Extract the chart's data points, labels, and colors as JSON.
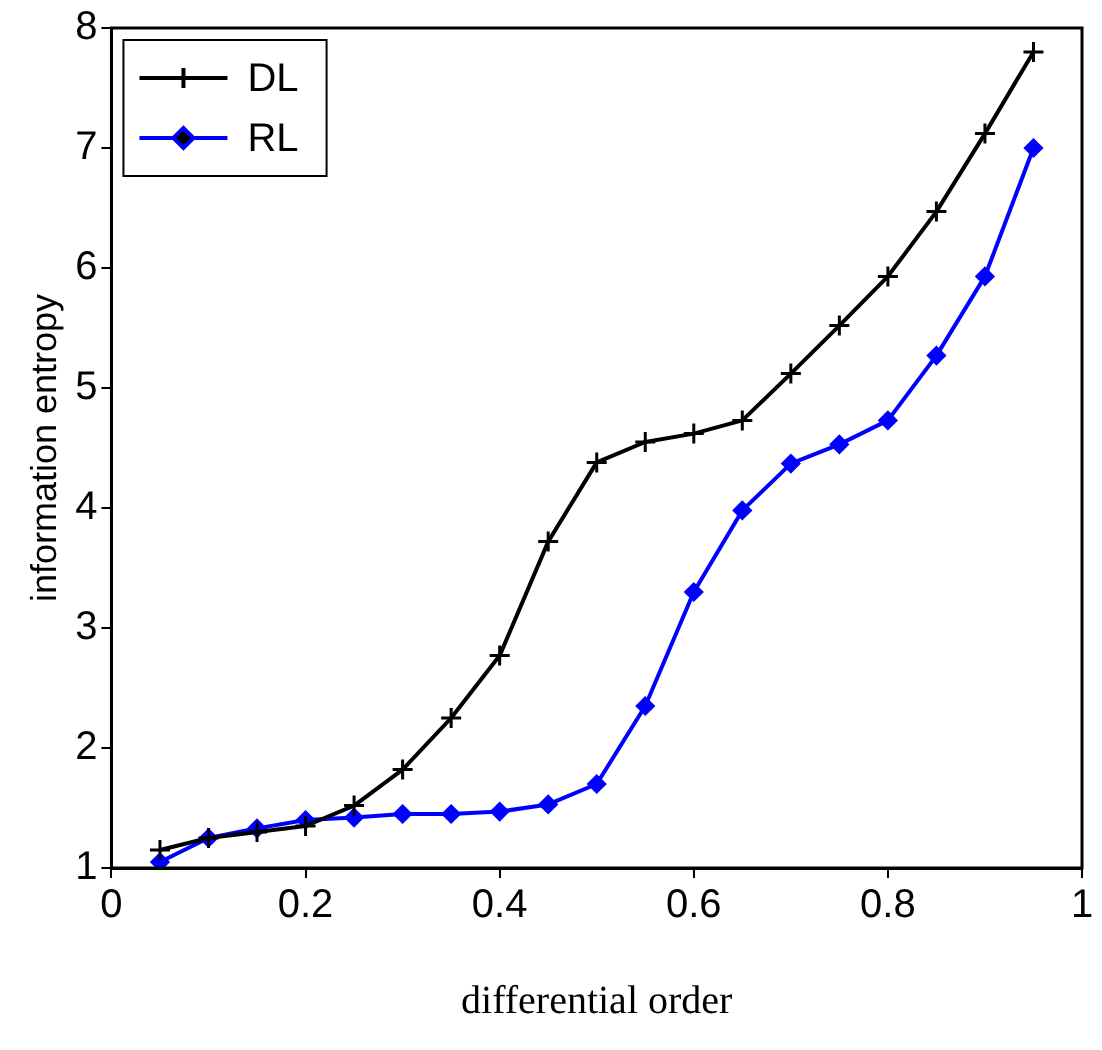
{
  "chart_data": {
    "type": "line",
    "xlabel": "differential order",
    "ylabel": "information entropy",
    "x": [
      0.05,
      0.1,
      0.15,
      0.2,
      0.25,
      0.3,
      0.35,
      0.4,
      0.45,
      0.5,
      0.55,
      0.6,
      0.65,
      0.7,
      0.75,
      0.8,
      0.85,
      0.9,
      0.95
    ],
    "series": [
      {
        "name": "DL",
        "color": "#000000",
        "marker": "cross",
        "values": [
          1.15,
          1.25,
          1.3,
          1.35,
          1.52,
          1.82,
          2.25,
          2.77,
          3.72,
          4.38,
          4.55,
          4.62,
          4.73,
          5.12,
          5.52,
          5.93,
          6.47,
          7.12,
          7.8
        ]
      },
      {
        "name": "RL",
        "color": "#0000ff",
        "marker": "diamond",
        "values": [
          1.05,
          1.25,
          1.33,
          1.4,
          1.42,
          1.45,
          1.45,
          1.47,
          1.53,
          1.7,
          2.35,
          3.3,
          3.98,
          4.37,
          4.53,
          4.73,
          5.27,
          5.93,
          7.0
        ]
      }
    ],
    "xlim": [
      0,
      1
    ],
    "xticks": [
      0,
      0.2,
      0.4,
      0.6,
      0.8,
      1
    ],
    "ylim": [
      1,
      8
    ],
    "yticks": [
      1,
      2,
      3,
      4,
      5,
      6,
      7,
      8
    ],
    "grid": false,
    "legend": "top left",
    "line_style": "solid"
  }
}
